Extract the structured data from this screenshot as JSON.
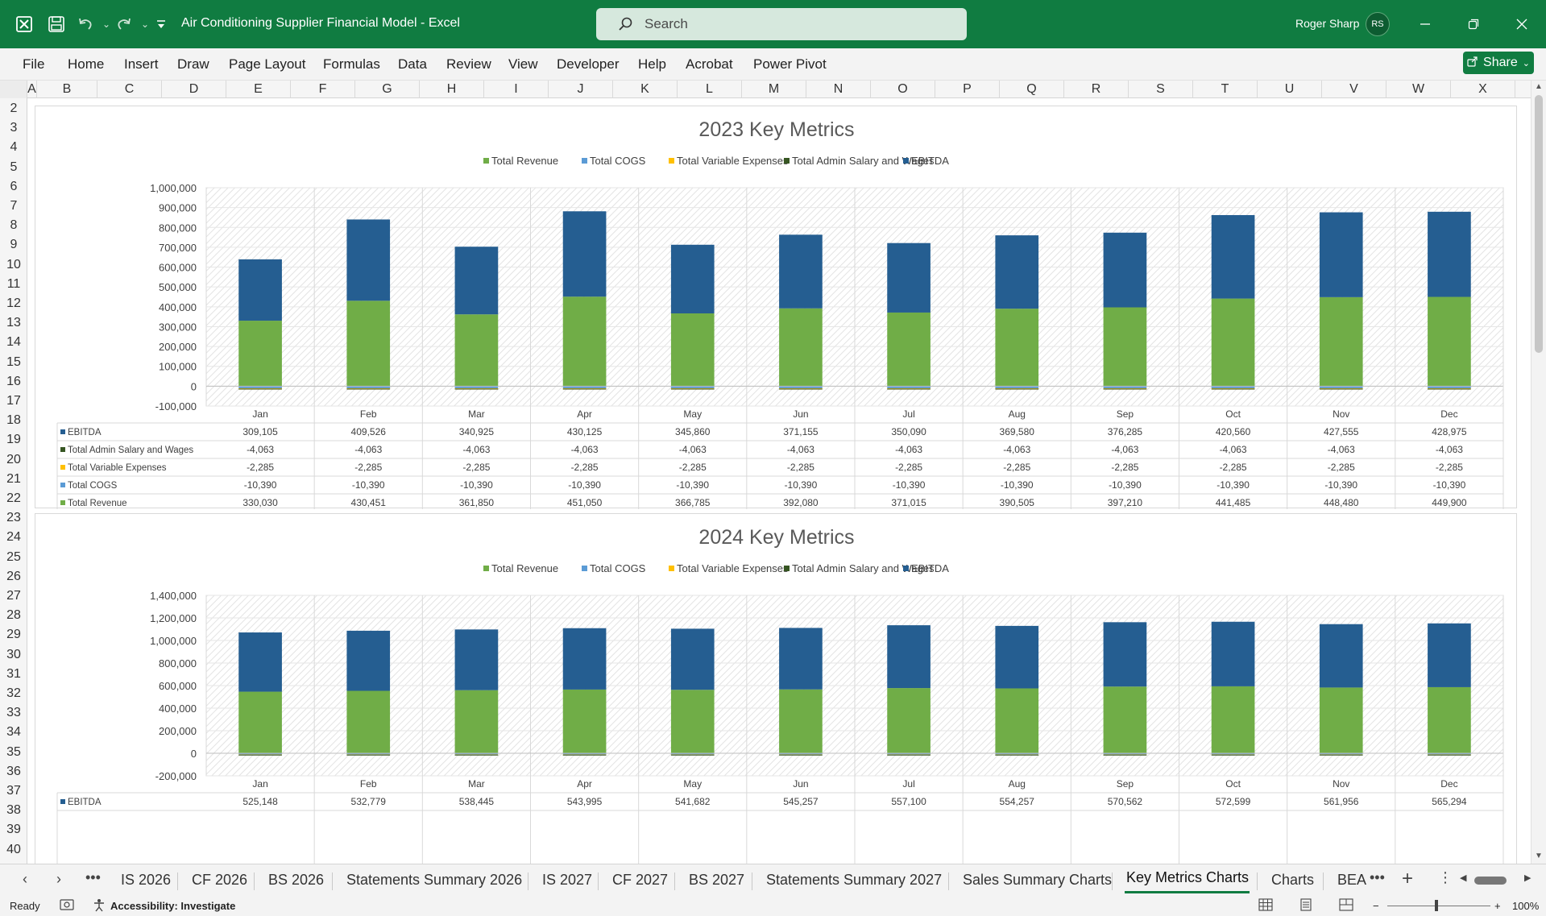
{
  "app": {
    "title": "Air Conditioning Supplier Financial Model  -  Excel",
    "search_placeholder": "Search",
    "user_name": "Roger Sharp",
    "user_initials": "RS",
    "share_label": "Share",
    "brand_color": "#107c41"
  },
  "menu": [
    "File",
    "Home",
    "Insert",
    "Draw",
    "Page Layout",
    "Formulas",
    "Data",
    "Review",
    "View",
    "Developer",
    "Help",
    "Acrobat",
    "Power Pivot"
  ],
  "columns": [
    "A",
    "B",
    "C",
    "D",
    "E",
    "F",
    "G",
    "H",
    "I",
    "J",
    "K",
    "L",
    "M",
    "N",
    "O",
    "P",
    "Q",
    "R",
    "S",
    "T",
    "U",
    "V",
    "W",
    "X"
  ],
  "rows": [
    "2",
    "3",
    "4",
    "5",
    "6",
    "7",
    "8",
    "9",
    "10",
    "11",
    "12",
    "13",
    "14",
    "15",
    "16",
    "17",
    "18",
    "19",
    "20",
    "21",
    "22",
    "23",
    "24",
    "25",
    "26",
    "27",
    "28",
    "29",
    "30",
    "31",
    "32",
    "33",
    "34",
    "35",
    "36",
    "37",
    "38",
    "39",
    "40"
  ],
  "chart_data": [
    {
      "type": "bar",
      "stacked": true,
      "title": "2023 Key Metrics",
      "legend": [
        "Total Revenue",
        "Total COGS",
        "Total Variable Expenses",
        "Total Admin Salary and Wages",
        "EBITDA"
      ],
      "legend_position": "top",
      "categories": [
        "Jan",
        "Feb",
        "Mar",
        "Apr",
        "May",
        "Jun",
        "Jul",
        "Aug",
        "Sep",
        "Oct",
        "Nov",
        "Dec"
      ],
      "y_ticks": [
        "1,000,000",
        "900,000",
        "800,000",
        "700,000",
        "600,000",
        "500,000",
        "400,000",
        "300,000",
        "200,000",
        "100,000",
        "0",
        "-100,000"
      ],
      "ylim": [
        -100000,
        1000000
      ],
      "series": [
        {
          "name": "Total Revenue",
          "color": "#70ad47",
          "values": [
            330030,
            430451,
            361850,
            451050,
            366785,
            392080,
            371015,
            390505,
            397210,
            441485,
            448480,
            449900
          ],
          "labels": [
            "330,030",
            "430,451",
            "361,850",
            "451,050",
            "366,785",
            "392,080",
            "371,015",
            "390,505",
            "397,210",
            "441,485",
            "448,480",
            "449,900"
          ]
        },
        {
          "name": "Total COGS",
          "color": "#5b9bd5",
          "values": [
            -10390,
            -10390,
            -10390,
            -10390,
            -10390,
            -10390,
            -10390,
            -10390,
            -10390,
            -10390,
            -10390,
            -10390
          ],
          "labels": [
            "-10,390",
            "-10,390",
            "-10,390",
            "-10,390",
            "-10,390",
            "-10,390",
            "-10,390",
            "-10,390",
            "-10,390",
            "-10,390",
            "-10,390",
            "-10,390"
          ]
        },
        {
          "name": "Total Variable Expenses",
          "color": "#ffc000",
          "values": [
            -2285,
            -2285,
            -2285,
            -2285,
            -2285,
            -2285,
            -2285,
            -2285,
            -2285,
            -2285,
            -2285,
            -2285
          ],
          "labels": [
            "-2,285",
            "-2,285",
            "-2,285",
            "-2,285",
            "-2,285",
            "-2,285",
            "-2,285",
            "-2,285",
            "-2,285",
            "-2,285",
            "-2,285",
            "-2,285"
          ]
        },
        {
          "name": "Total Admin Salary and Wages",
          "color": "#375623",
          "values": [
            -4063,
            -4063,
            -4063,
            -4063,
            -4063,
            -4063,
            -4063,
            -4063,
            -4063,
            -4063,
            -4063,
            -4063
          ],
          "labels": [
            "-4,063",
            "-4,063",
            "-4,063",
            "-4,063",
            "-4,063",
            "-4,063",
            "-4,063",
            "-4,063",
            "-4,063",
            "-4,063",
            "-4,063",
            "-4,063"
          ]
        },
        {
          "name": "EBITDA",
          "color": "#255e91",
          "values": [
            309105,
            409526,
            340925,
            430125,
            345860,
            371155,
            350090,
            369580,
            376285,
            420560,
            427555,
            428975
          ],
          "labels": [
            "309,105",
            "409,526",
            "340,925",
            "430,125",
            "345,860",
            "371,155",
            "350,090",
            "369,580",
            "376,285",
            "420,560",
            "427,555",
            "428,975"
          ]
        }
      ],
      "table_order": [
        "EBITDA",
        "Total Admin Salary and Wages",
        "Total Variable Expenses",
        "Total COGS",
        "Total Revenue"
      ]
    },
    {
      "type": "bar",
      "stacked": true,
      "title": "2024 Key Metrics",
      "legend": [
        "Total Revenue",
        "Total COGS",
        "Total Variable Expenses",
        "Total Admin Salary and Wages",
        "EBITDA"
      ],
      "legend_position": "top",
      "categories": [
        "Jan",
        "Feb",
        "Mar",
        "Apr",
        "May",
        "Jun",
        "Jul",
        "Aug",
        "Sep",
        "Oct",
        "Nov",
        "Dec"
      ],
      "y_ticks": [
        "1,400,000",
        "1,200,000",
        "1,000,000",
        "800,000",
        "600,000",
        "400,000",
        "200,000",
        "0",
        "-200,000"
      ],
      "ylim": [
        -200000,
        1400000
      ],
      "series": [
        {
          "name": "Total Revenue",
          "color": "#70ad47",
          "values": [
            546000,
            553600,
            559300,
            564900,
            562600,
            566100,
            578000,
            575100,
            591400,
            593400,
            582800,
            586100
          ]
        },
        {
          "name": "Total COGS",
          "color": "#5b9bd5",
          "values": [
            -10390,
            -10390,
            -10390,
            -10390,
            -10390,
            -10390,
            -10390,
            -10390,
            -10390,
            -10390,
            -10390,
            -10390
          ]
        },
        {
          "name": "Total Variable Expenses",
          "color": "#ffc000",
          "values": [
            -2285,
            -2285,
            -2285,
            -2285,
            -2285,
            -2285,
            -2285,
            -2285,
            -2285,
            -2285,
            -2285,
            -2285
          ]
        },
        {
          "name": "Total Admin Salary and Wages",
          "color": "#375623",
          "values": [
            -4063,
            -4063,
            -4063,
            -4063,
            -4063,
            -4063,
            -4063,
            -4063,
            -4063,
            -4063,
            -4063,
            -4063
          ]
        },
        {
          "name": "EBITDA",
          "color": "#255e91",
          "values": [
            525148,
            532779,
            538445,
            543995,
            541682,
            545257,
            557100,
            554257,
            570562,
            572599,
            561956,
            565294
          ],
          "labels": [
            "525,148",
            "532,779",
            "538,445",
            "543,995",
            "541,682",
            "545,257",
            "557,100",
            "554,257",
            "570,562",
            "572,599",
            "561,956",
            "565,294"
          ]
        }
      ],
      "table_order": [
        "EBITDA"
      ]
    }
  ],
  "sheet_tabs": [
    "IS 2026",
    "CF 2026",
    "BS 2026",
    "Statements Summary 2026",
    "IS 2027",
    "CF 2027",
    "BS 2027",
    "Statements Summary 2027",
    "Sales Summary Charts",
    "Key Metrics Charts",
    "Charts",
    "BEA"
  ],
  "active_tab": "Key Metrics Charts",
  "status": {
    "ready": "Ready",
    "accessibility": "Accessibility: Investigate",
    "zoom": "100%"
  }
}
